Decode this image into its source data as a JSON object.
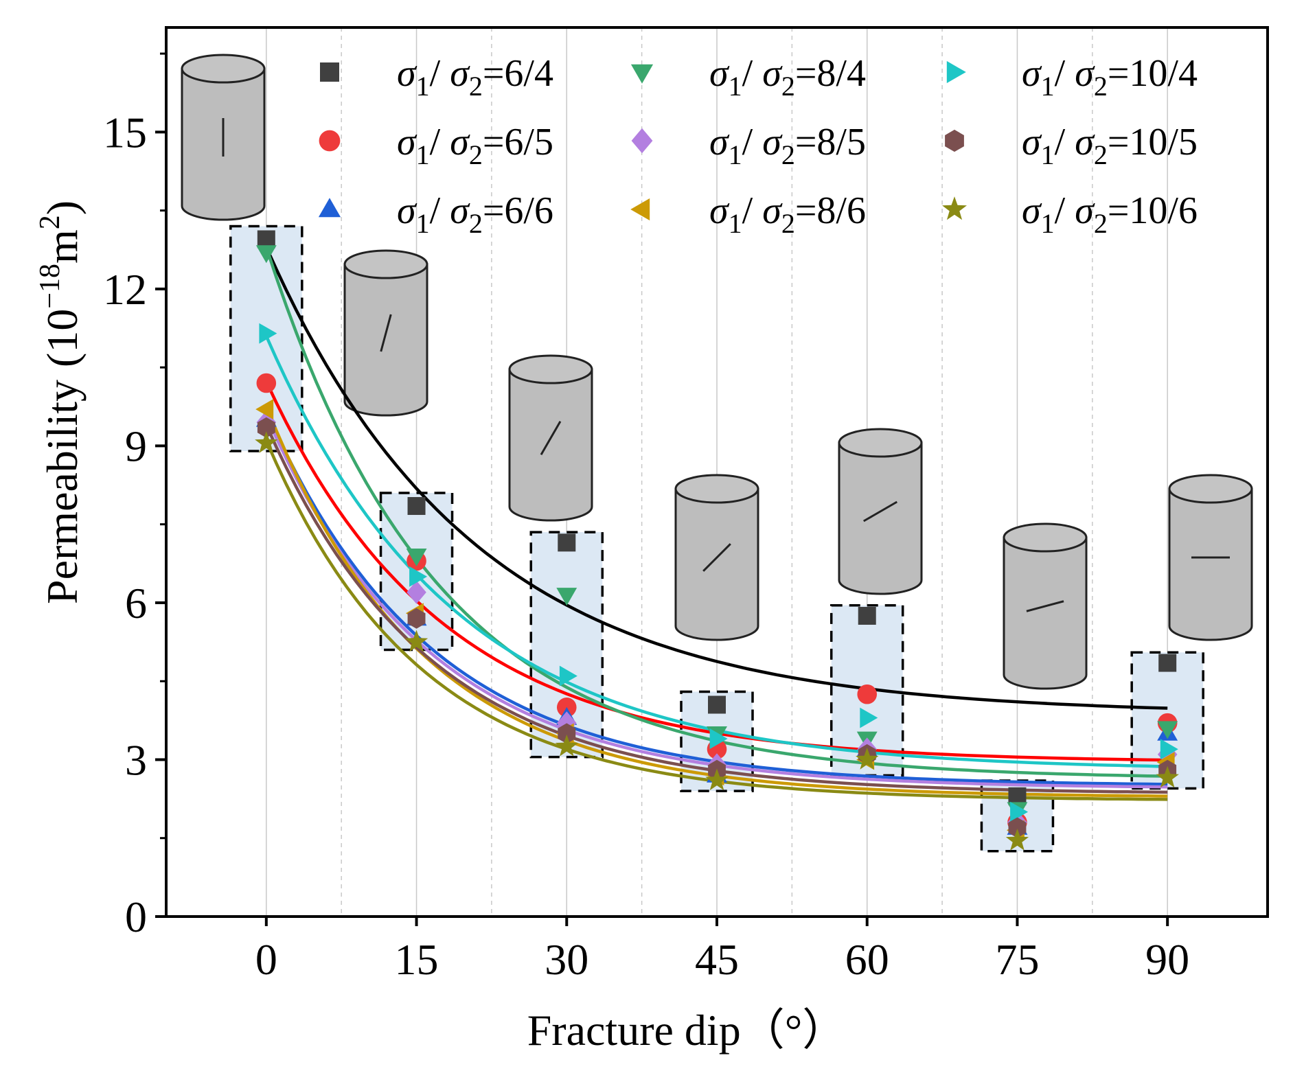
{
  "chart_data": {
    "type": "scatter",
    "title": "",
    "xlabel": "Fracture dip（°）",
    "ylabel": "Permeability",
    "ylabel_unit_parts": {
      "pre": "(10",
      "exp": "−18",
      "unit": "m",
      "exp2": "2",
      "post": ")"
    },
    "xlim": [
      -10,
      100
    ],
    "ylim": [
      0,
      17
    ],
    "x": [
      0,
      15,
      30,
      45,
      60,
      75,
      90
    ],
    "x_tick_labels": [
      "0",
      "15",
      "30",
      "45",
      "60",
      "75",
      "90"
    ],
    "y_ticks": [
      0,
      3,
      6,
      9,
      12,
      15
    ],
    "y_tick_labels": [
      "0",
      "3",
      "6",
      "9",
      "12",
      "15"
    ],
    "grid": "vertical",
    "legend_position": "top",
    "series": [
      {
        "name": "σ1/ σ2=6/4",
        "ratio": "6/4",
        "color": "#404040",
        "marker": "square",
        "fit_color": "#000000",
        "values": [
          12.95,
          7.85,
          7.15,
          4.05,
          5.75,
          2.3,
          4.85
        ],
        "fit": {
          "a": 8.93,
          "k": 0.0485,
          "c": 3.87
        }
      },
      {
        "name": "σ1/ σ2=6/5",
        "ratio": "6/5",
        "color": "#ee3b3b",
        "marker": "circle",
        "fit_color": "#ff0000",
        "values": [
          10.2,
          6.8,
          4.0,
          3.2,
          4.25,
          1.8,
          3.7
        ],
        "fit": {
          "a": 7.28,
          "k": 0.0572,
          "c": 2.95
        }
      },
      {
        "name": "σ1/ σ2=6/6",
        "ratio": "6/6",
        "color": "#1f5fd6",
        "marker": "triangle-up",
        "fit_color": "#1f5fd6",
        "values": [
          9.5,
          5.7,
          3.8,
          2.7,
          3.2,
          1.7,
          3.5
        ],
        "fit": {
          "a": 7.17,
          "k": 0.061,
          "c": 2.5
        }
      },
      {
        "name": "σ1/ σ2=8/4",
        "ratio": "8/4",
        "color": "#3aa76d",
        "marker": "triangle-down",
        "fit_color": "#3aa76d",
        "values": [
          12.7,
          6.9,
          6.15,
          3.5,
          3.4,
          2.05,
          3.6
        ],
        "fit": {
          "a": 10.17,
          "k": 0.0586,
          "c": 2.63
        }
      },
      {
        "name": "σ1/ σ2=8/5",
        "ratio": "8/5",
        "color": "#b37fe0",
        "marker": "diamond",
        "fit_color": "#b37fe0",
        "values": [
          9.45,
          6.2,
          3.7,
          2.9,
          3.2,
          1.8,
          3.1
        ],
        "fit": {
          "a": 7.13,
          "k": 0.0617,
          "c": 2.45
        }
      },
      {
        "name": "σ1/ σ2=8/6",
        "ratio": "8/6",
        "color": "#cc9a06",
        "marker": "triangle-left",
        "fit_color": "#cc9a06",
        "values": [
          9.7,
          5.8,
          3.5,
          2.7,
          3.0,
          1.65,
          2.95
        ],
        "fit": {
          "a": 7.48,
          "k": 0.0644,
          "c": 2.28
        }
      },
      {
        "name": "σ1/ σ2=10/4",
        "ratio": "10/4",
        "color": "#1ec6c6",
        "marker": "triangle-right",
        "fit_color": "#1ec6c6",
        "values": [
          11.15,
          6.5,
          4.6,
          3.4,
          3.8,
          2.0,
          3.2
        ],
        "fit": {
          "a": 8.3,
          "k": 0.0532,
          "c": 2.8
        }
      },
      {
        "name": "σ1/ σ2=10/5",
        "ratio": "10/5",
        "color": "#7b4f4f",
        "marker": "hexagon",
        "fit_color": "#7b4f4f",
        "values": [
          9.35,
          5.7,
          3.5,
          2.8,
          3.1,
          1.7,
          2.8
        ],
        "fit": {
          "a": 7.05,
          "k": 0.0617,
          "c": 2.35
        }
      },
      {
        "name": "σ1/ σ2=10/6",
        "ratio": "10/6",
        "color": "#8a8a14",
        "marker": "star",
        "fit_color": "#8a8a14",
        "values": [
          9.05,
          5.25,
          3.25,
          2.6,
          3.0,
          1.45,
          2.65
        ],
        "fit": {
          "a": 6.88,
          "k": 0.065,
          "c": 2.22
        }
      }
    ],
    "annotations": {
      "fracture_specimens": [
        0,
        15,
        30,
        45,
        60,
        75,
        90
      ],
      "dashed_boxes_ranges": [
        [
          8.9,
          13.2
        ],
        [
          5.1,
          8.1
        ],
        [
          3.05,
          7.35
        ],
        [
          2.4,
          4.3
        ],
        [
          2.7,
          5.95
        ],
        [
          1.25,
          2.6
        ],
        [
          2.45,
          5.05
        ]
      ]
    }
  }
}
